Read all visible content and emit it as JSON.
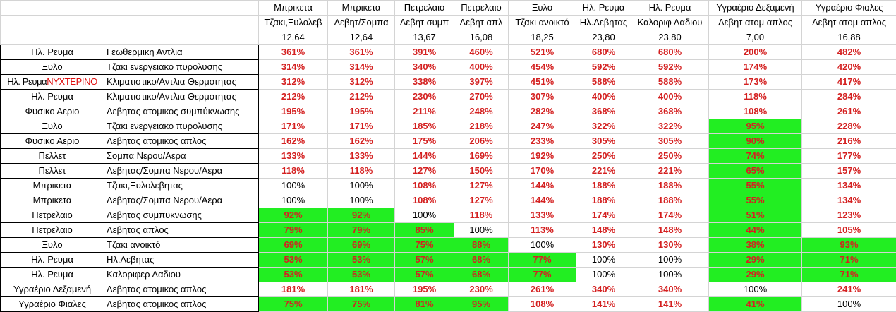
{
  "header": {
    "top": [
      "",
      "",
      "Μπρικετα",
      "Μπρικετα",
      "Πετρελαιο",
      "Πετρελαιο",
      "Ξυλο",
      "Ηλ. Ρευμα",
      "Ηλ. Ρευμα",
      "Υγραέριο Δεξαμενή",
      "Υγραέριο Φιαλες"
    ],
    "sub": [
      "",
      "",
      "Τζακι,Ξυλολεβ",
      "Λεβητ/Σομπα",
      "Λεβητ συμπ",
      "Λεβητ απλ",
      "Τζακι ανοικτό",
      "Ηλ.Λεβητας",
      "Καλοριφ Λαδιου",
      "Λεβητ ατομ απλος",
      "Λεβητ ατομ απλος"
    ],
    "costs": [
      "",
      "",
      "12,64",
      "12,64",
      "13,67",
      "16,08",
      "18,25",
      "23,80",
      "23,80",
      "7,00",
      "16,88"
    ]
  },
  "rows": [
    {
      "fuel": "Ηλ. Ρευμα",
      "fuel_extra": "",
      "system": "Γεωθερμικη Αντλια",
      "values": [
        "361%",
        "361%",
        "391%",
        "460%",
        "521%",
        "680%",
        "680%",
        "200%",
        "482%"
      ]
    },
    {
      "fuel": "Ξυλο",
      "fuel_extra": "",
      "system": "Τζακι ενεργειακο πυρολυσης",
      "values": [
        "314%",
        "314%",
        "340%",
        "400%",
        "454%",
        "592%",
        "592%",
        "174%",
        "420%"
      ]
    },
    {
      "fuel": "Ηλ. Ρευμα",
      "fuel_extra": "ΝΥΧΤΕΡΙΝΟ",
      "system": "Κλιματιστικο/Αντλια Θερμοτητας",
      "values": [
        "312%",
        "312%",
        "338%",
        "397%",
        "451%",
        "588%",
        "588%",
        "173%",
        "417%"
      ]
    },
    {
      "fuel": "Ηλ. Ρευμα",
      "fuel_extra": "",
      "system": "Κλιματιστικο/Αντλια Θερμοτητας",
      "values": [
        "212%",
        "212%",
        "230%",
        "270%",
        "307%",
        "400%",
        "400%",
        "118%",
        "284%"
      ]
    },
    {
      "fuel": "Φυσικο Αεριο",
      "fuel_extra": "",
      "system": "Λεβητας ατομικος συμπύκνωσης",
      "values": [
        "195%",
        "195%",
        "211%",
        "248%",
        "282%",
        "368%",
        "368%",
        "108%",
        "261%"
      ]
    },
    {
      "fuel": "Ξυλο",
      "fuel_extra": "",
      "system": "Τζακι ενεργειακο πυρολυσης",
      "values": [
        "171%",
        "171%",
        "185%",
        "218%",
        "247%",
        "322%",
        "322%",
        "95%",
        "228%"
      ]
    },
    {
      "fuel": "Φυσικο Αεριο",
      "fuel_extra": "",
      "system": "Λεβητας ατομικος απλος",
      "values": [
        "162%",
        "162%",
        "175%",
        "206%",
        "233%",
        "305%",
        "305%",
        "90%",
        "216%"
      ]
    },
    {
      "fuel": "Πελλετ",
      "fuel_extra": "",
      "system": "Σομπα Νερου/Αερα",
      "values": [
        "133%",
        "133%",
        "144%",
        "169%",
        "192%",
        "250%",
        "250%",
        "74%",
        "177%"
      ]
    },
    {
      "fuel": "Πελλετ",
      "fuel_extra": "",
      "system": "Λεβητας/Σομπα Νερου/Αερα",
      "values": [
        "118%",
        "118%",
        "127%",
        "150%",
        "170%",
        "221%",
        "221%",
        "65%",
        "157%"
      ]
    },
    {
      "fuel": "Μπρικετα",
      "fuel_extra": "",
      "system": "Τζακι,Ξυλολεβητας",
      "values": [
        "100%",
        "100%",
        "108%",
        "127%",
        "144%",
        "188%",
        "188%",
        "55%",
        "134%"
      ]
    },
    {
      "fuel": "Μπρικετα",
      "fuel_extra": "",
      "system": "Λεβητας/Σομπα Νερου/Αερα",
      "values": [
        "100%",
        "100%",
        "108%",
        "127%",
        "144%",
        "188%",
        "188%",
        "55%",
        "134%"
      ]
    },
    {
      "fuel": "Πετρελαιο",
      "fuel_extra": "",
      "system": "Λεβητας συμπυκνωσης",
      "values": [
        "92%",
        "92%",
        "100%",
        "118%",
        "133%",
        "174%",
        "174%",
        "51%",
        "123%"
      ]
    },
    {
      "fuel": "Πετρελαιο",
      "fuel_extra": "",
      "system": "Λεβητας απλος",
      "values": [
        "79%",
        "79%",
        "85%",
        "100%",
        "113%",
        "148%",
        "148%",
        "44%",
        "105%"
      ]
    },
    {
      "fuel": "Ξυλο",
      "fuel_extra": "",
      "system": "Τζακι ανοικτό",
      "values": [
        "69%",
        "69%",
        "75%",
        "88%",
        "100%",
        "130%",
        "130%",
        "38%",
        "93%"
      ]
    },
    {
      "fuel": "Ηλ. Ρευμα",
      "fuel_extra": "",
      "system": "Ηλ.Λεβητας",
      "values": [
        "53%",
        "53%",
        "57%",
        "68%",
        "77%",
        "100%",
        "100%",
        "29%",
        "71%"
      ]
    },
    {
      "fuel": "Ηλ. Ρευμα",
      "fuel_extra": "",
      "system": "Καλοριφερ Λαδιου",
      "values": [
        "53%",
        "53%",
        "57%",
        "68%",
        "77%",
        "100%",
        "100%",
        "29%",
        "71%"
      ]
    },
    {
      "fuel": "Υγραέριο Δεξαμενή",
      "fuel_extra": "",
      "system": "Λεβητας ατομικος απλος",
      "values": [
        "181%",
        "181%",
        "195%",
        "230%",
        "261%",
        "340%",
        "340%",
        "100%",
        "241%"
      ]
    },
    {
      "fuel": "Υγραέριο Φιαλες",
      "fuel_extra": "",
      "system": "Λεβητας ατομικος απλος",
      "values": [
        "75%",
        "75%",
        "81%",
        "95%",
        "108%",
        "141%",
        "141%",
        "41%",
        "100%"
      ]
    }
  ],
  "colors": {
    "value_text": "#d42020",
    "green_fill": "#22ee22",
    "night_label": "#e01010"
  }
}
